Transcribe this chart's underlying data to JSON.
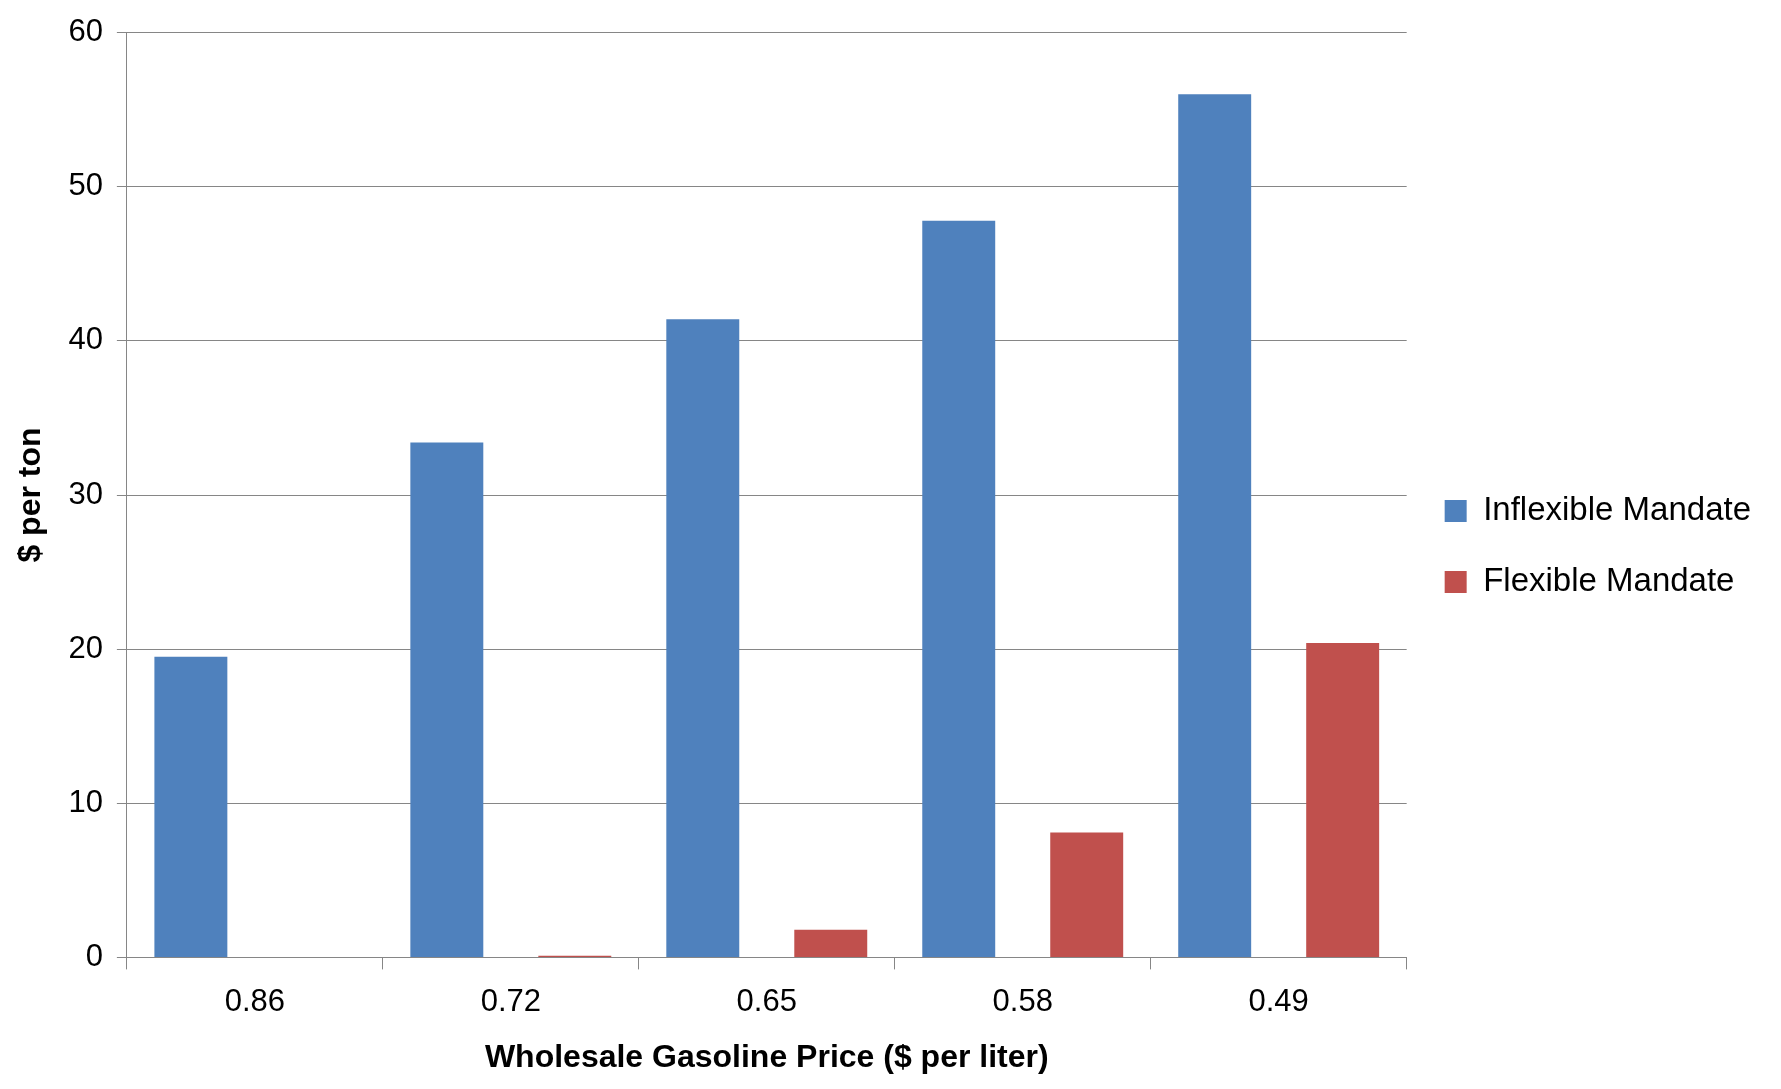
{
  "chart_data": {
    "type": "bar",
    "xlabel": "Wholesale Gasoline Price ($ per liter)",
    "ylabel": "$ per ton",
    "categories": [
      "0.86",
      "0.72",
      "0.65",
      "0.58",
      "0.49"
    ],
    "series": [
      {
        "name": "Inflexible Mandate",
        "color": "#4f81bd",
        "values": [
          19.5,
          33.4,
          41.4,
          47.8,
          56.0
        ]
      },
      {
        "name": "Flexible Mandate",
        "color": "#c0504d",
        "values": [
          0,
          0.1,
          1.8,
          8.1,
          20.4
        ]
      }
    ],
    "ylim": [
      0,
      60
    ],
    "yticks": [
      0,
      10,
      20,
      30,
      40,
      50,
      60
    ],
    "grid": "y",
    "legend": "right"
  }
}
